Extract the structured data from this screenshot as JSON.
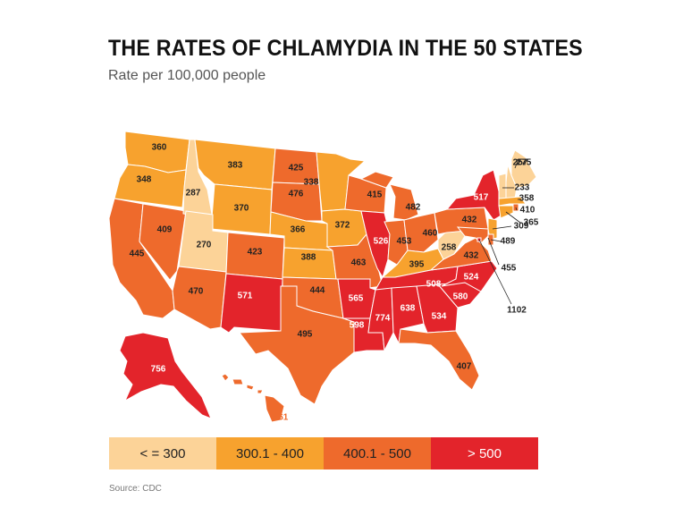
{
  "title": "THE RATES OF CHLAMYDIA IN THE 50 STATES",
  "subtitle": "Rate per 100,000 people",
  "source": "Source: CDC",
  "colors": {
    "c1": "#fcd398",
    "c2": "#f7a22e",
    "c3": "#ee6a2c",
    "c4": "#e3242b",
    "border": "#ffffff"
  },
  "legend": [
    {
      "label": "< = 300",
      "color": "#fcd398"
    },
    {
      "label": "300.1 - 400",
      "color": "#f7a22e"
    },
    {
      "label": "400.1 - 500",
      "color": "#ee6a2c"
    },
    {
      "label": "> 500",
      "color": "#e3242b"
    }
  ],
  "states": [
    {
      "name": "Washington",
      "value": "360"
    },
    {
      "name": "Oregon",
      "value": "348"
    },
    {
      "name": "California",
      "value": "445"
    },
    {
      "name": "Nevada",
      "value": "409"
    },
    {
      "name": "Idaho",
      "value": "287"
    },
    {
      "name": "Montana",
      "value": "383"
    },
    {
      "name": "Wyoming",
      "value": "370"
    },
    {
      "name": "Utah",
      "value": "270"
    },
    {
      "name": "Arizona",
      "value": "470"
    },
    {
      "name": "Colorado",
      "value": "423"
    },
    {
      "name": "New Mexico",
      "value": "571"
    },
    {
      "name": "North Dakota",
      "value": "425"
    },
    {
      "name": "South Dakota",
      "value": "476"
    },
    {
      "name": "Nebraska",
      "value": "366"
    },
    {
      "name": "Kansas",
      "value": "388"
    },
    {
      "name": "Oklahoma",
      "value": "444"
    },
    {
      "name": "Texas",
      "value": "495"
    },
    {
      "name": "Minnesota",
      "value": "338"
    },
    {
      "name": "Iowa",
      "value": "372"
    },
    {
      "name": "Missouri",
      "value": "463"
    },
    {
      "name": "Arkansas",
      "value": "565"
    },
    {
      "name": "Louisiana",
      "value": "598"
    },
    {
      "name": "Wisconsin",
      "value": "415"
    },
    {
      "name": "Illinois",
      "value": "526"
    },
    {
      "name": "Michigan",
      "value": "482"
    },
    {
      "name": "Indiana",
      "value": "453"
    },
    {
      "name": "Ohio",
      "value": "460"
    },
    {
      "name": "Kentucky",
      "value": "395"
    },
    {
      "name": "Tennessee",
      "value": "508"
    },
    {
      "name": "Mississippi",
      "value": "774"
    },
    {
      "name": "Alabama",
      "value": "638"
    },
    {
      "name": "Georgia",
      "value": "534"
    },
    {
      "name": "Florida",
      "value": "407"
    },
    {
      "name": "South Carolina",
      "value": "580"
    },
    {
      "name": "North Carolina",
      "value": "524"
    },
    {
      "name": "Virginia",
      "value": "432"
    },
    {
      "name": "West Virginia",
      "value": "258"
    },
    {
      "name": "Pennsylvania",
      "value": "432"
    },
    {
      "name": "New York",
      "value": "517"
    },
    {
      "name": "Maine",
      "value": "275"
    },
    {
      "name": "New Hampshire",
      "value": "257"
    },
    {
      "name": "Vermont",
      "value": "233"
    },
    {
      "name": "Massachusetts",
      "value": "358"
    },
    {
      "name": "Rhode Island",
      "value": "410"
    },
    {
      "name": "Connecticut",
      "value": "365"
    },
    {
      "name": "New Jersey",
      "value": "309"
    },
    {
      "name": "Delaware",
      "value": "489"
    },
    {
      "name": "Maryland",
      "value": "455"
    },
    {
      "name": "District of Columbia",
      "value": "1102"
    },
    {
      "name": "Alaska",
      "value": "756"
    },
    {
      "name": "Hawaii",
      "value": "461"
    }
  ]
}
